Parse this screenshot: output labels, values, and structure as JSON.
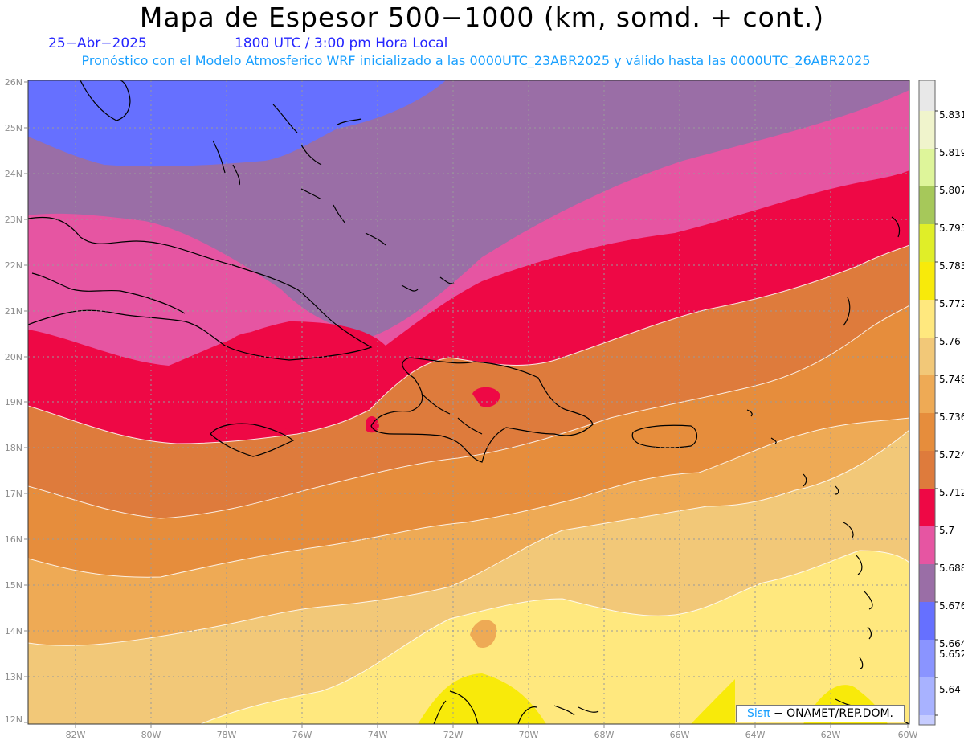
{
  "header": {
    "title": "Mapa de Espesor 500−1000 (km, somd. + cont.)",
    "date": "25−Abr−2025",
    "time": "1800 UTC / 3:00 pm Hora Local",
    "model_line": "Pronóstico con el Modelo Atmosferico WRF inicializado a las 0000UTC_23ABR2025 y válido hasta las  0000UTC_26ABR2025"
  },
  "map": {
    "lat_labels": [
      "26N",
      "25N",
      "24N",
      "23N",
      "22N",
      "21N",
      "20N",
      "19N",
      "18N",
      "17N",
      "16N",
      "15N",
      "14N",
      "13N",
      "12N"
    ],
    "lon_labels": [
      "82W",
      "80W",
      "78W",
      "76W",
      "74W",
      "72W",
      "70W",
      "68W",
      "66W",
      "64W",
      "62W",
      "60W"
    ],
    "bands": [
      {
        "color": "#6670ff"
      },
      {
        "color": "#9a6ea6"
      },
      {
        "color": "#e655a2"
      },
      {
        "color": "#ee0845"
      },
      {
        "color": "#de7b3c"
      },
      {
        "color": "#e68d3c"
      },
      {
        "color": "#eeaa55"
      },
      {
        "color": "#f2c878"
      },
      {
        "color": "#ffe87e"
      },
      {
        "color": "#f8ea0a"
      }
    ]
  },
  "colorbar": {
    "labels": [
      "5.831",
      "5.819",
      "5.807",
      "5.795",
      "5.783",
      "5.772",
      "5.76",
      "5.748",
      "5.736",
      "5.724",
      "5.712",
      "5.7",
      "5.688",
      "5.676",
      "5.664",
      "5.652",
      "5.64"
    ],
    "colors": [
      "#e8e8e8",
      "#f0f4cc",
      "#def59a",
      "#a6c85a",
      "#e0ee28",
      "#f8ea0a",
      "#ffe87e",
      "#f2c878",
      "#eeaa55",
      "#e68d3c",
      "#de7b3c",
      "#ee0845",
      "#e655a2",
      "#9a6ea6",
      "#6670ff",
      "#8a94ff",
      "#a8b2ff",
      "#c6ccff"
    ]
  },
  "credit": {
    "sis": "Sisπ",
    "org": "−  ONAMET/REP.DOM."
  }
}
